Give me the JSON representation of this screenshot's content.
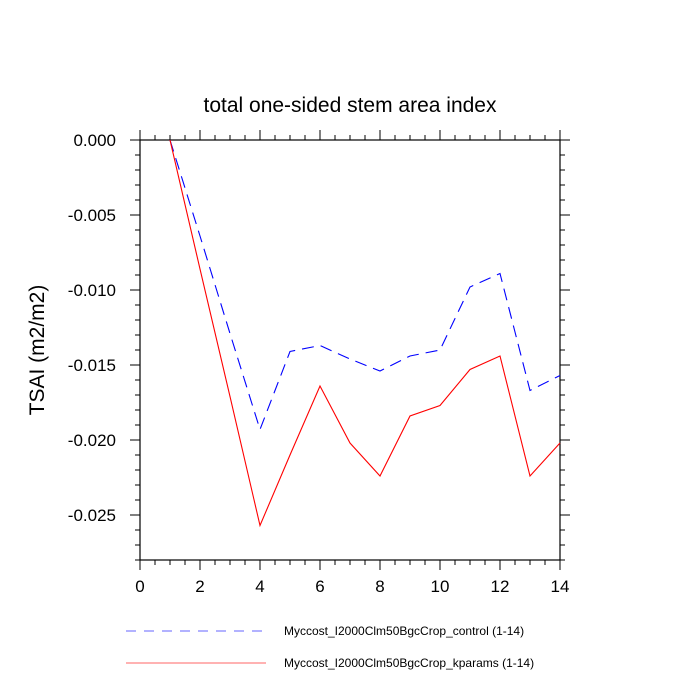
{
  "chart_data": {
    "type": "line",
    "title": "total one-sided stem area index",
    "ylabel": "TSAI  (m2/m2)",
    "xlabel": "",
    "xlim": [
      0,
      14
    ],
    "ylim": [
      -0.028,
      0.0
    ],
    "x_ticks": [
      0,
      2,
      4,
      6,
      8,
      10,
      12,
      14
    ],
    "x_tick_labels": [
      "0",
      "2",
      "4",
      "6",
      "8",
      "10",
      "12",
      "14"
    ],
    "y_ticks": [
      0.0,
      -0.005,
      -0.01,
      -0.015,
      -0.02,
      -0.025
    ],
    "y_tick_labels": [
      "0.000",
      "-0.005",
      "-0.010",
      "-0.015",
      "-0.020",
      "-0.025"
    ],
    "grid": false,
    "legend_position": "bottom",
    "x": [
      1,
      2,
      3,
      4,
      5,
      6,
      7,
      8,
      9,
      10,
      11,
      12,
      13,
      14
    ],
    "series": [
      {
        "name": "Myccost_I2000Clm50BgcCrop_control (1-14)",
        "color": "#0000ff",
        "dash": "dashed",
        "values": [
          0.0,
          -0.0064,
          -0.0129,
          -0.0193,
          -0.0141,
          -0.0137,
          -0.0146,
          -0.0154,
          -0.0144,
          -0.014,
          -0.0098,
          -0.0089,
          -0.0167,
          -0.0157
        ]
      },
      {
        "name": "Myccost_I2000Clm50BgcCrop_kparams (1-14)",
        "color": "#ff0000",
        "dash": "solid",
        "values": [
          0.0,
          -0.0086,
          -0.0171,
          -0.0257,
          -0.021,
          -0.0164,
          -0.0202,
          -0.0224,
          -0.0184,
          -0.0177,
          -0.0153,
          -0.0144,
          -0.0224,
          -0.0202
        ]
      }
    ]
  }
}
